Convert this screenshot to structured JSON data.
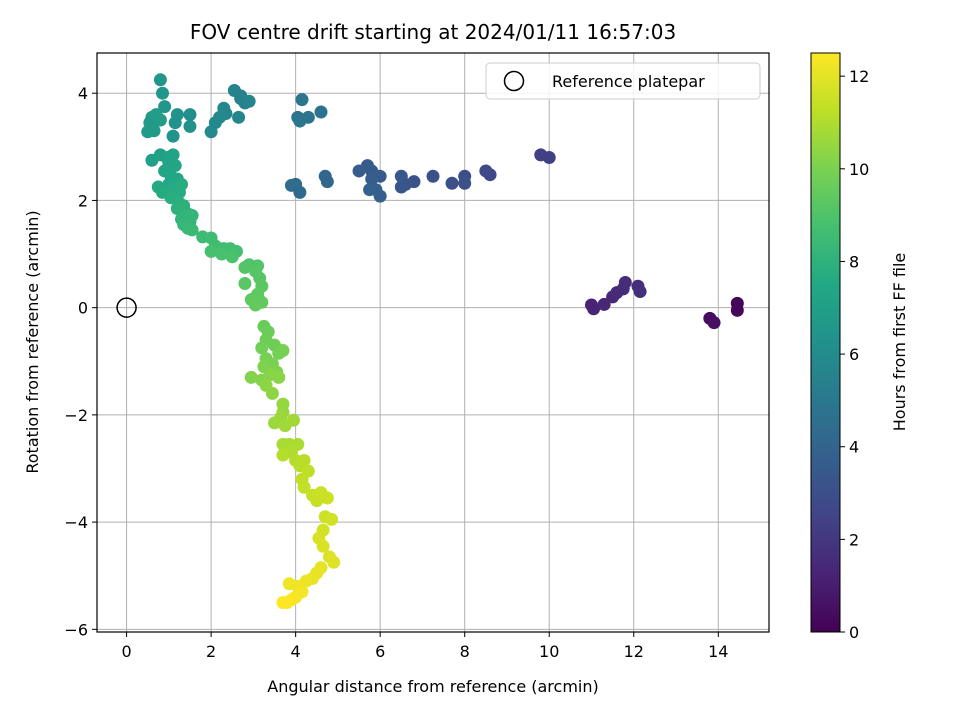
{
  "chart_data": {
    "type": "scatter",
    "title": "FOV centre drift starting at 2024/01/11 16:57:03",
    "xlabel": "Angular distance from reference (arcmin)",
    "ylabel": "Rotation from reference (arcmin)",
    "xlim": [
      -0.7,
      15.2
    ],
    "ylim": [
      -6.05,
      4.75
    ],
    "xticks": [
      0,
      2,
      4,
      6,
      8,
      10,
      12,
      14
    ],
    "yticks": [
      -6,
      -4,
      -2,
      0,
      2,
      4
    ],
    "grid": true,
    "colormap": "viridis",
    "colorbar": {
      "label": "Hours from first FF file",
      "range": [
        0,
        12.5
      ],
      "ticks": [
        0,
        2,
        4,
        6,
        8,
        10,
        12
      ]
    },
    "legend": {
      "position": "top-right",
      "entries": [
        {
          "label": "Reference platepar",
          "marker": "open-circle"
        }
      ]
    },
    "reference_point": {
      "x": 0,
      "y": 0
    },
    "series": [
      {
        "columns": [
          "x",
          "y",
          "hours"
        ],
        "points": [
          [
            14.45,
            0.08,
            0.1
          ],
          [
            14.45,
            -0.05,
            0.2
          ],
          [
            13.8,
            -0.2,
            0.4
          ],
          [
            13.9,
            -0.28,
            0.5
          ],
          [
            11.0,
            0.05,
            1.2
          ],
          [
            11.05,
            -0.02,
            1.25
          ],
          [
            11.3,
            0.06,
            1.35
          ],
          [
            11.5,
            0.2,
            1.45
          ],
          [
            11.6,
            0.28,
            1.5
          ],
          [
            11.75,
            0.35,
            1.55
          ],
          [
            11.8,
            0.47,
            1.6
          ],
          [
            12.1,
            0.4,
            1.65
          ],
          [
            12.15,
            0.3,
            1.7
          ],
          [
            9.8,
            2.85,
            2.3
          ],
          [
            10.0,
            2.8,
            2.35
          ],
          [
            8.6,
            2.48,
            2.7
          ],
          [
            8.5,
            2.55,
            2.75
          ],
          [
            8.0,
            2.45,
            2.9
          ],
          [
            7.7,
            2.32,
            3.0
          ],
          [
            8.0,
            2.32,
            3.05
          ],
          [
            7.25,
            2.45,
            3.1
          ],
          [
            6.8,
            2.35,
            3.2
          ],
          [
            6.6,
            2.3,
            3.3
          ],
          [
            6.5,
            2.25,
            3.35
          ],
          [
            6.5,
            2.45,
            3.4
          ],
          [
            6.0,
            2.45,
            3.5
          ],
          [
            5.7,
            2.65,
            3.55
          ],
          [
            5.8,
            2.55,
            3.6
          ],
          [
            5.5,
            2.55,
            3.65
          ],
          [
            5.8,
            2.4,
            3.7
          ],
          [
            5.9,
            2.2,
            3.75
          ],
          [
            6.0,
            2.08,
            3.8
          ],
          [
            5.75,
            2.2,
            3.85
          ],
          [
            4.7,
            2.45,
            4.1
          ],
          [
            4.75,
            2.35,
            4.15
          ],
          [
            4.1,
            2.15,
            4.3
          ],
          [
            4.0,
            2.3,
            4.35
          ],
          [
            3.9,
            2.28,
            4.4
          ],
          [
            4.6,
            3.65,
            4.7
          ],
          [
            4.3,
            3.55,
            4.75
          ],
          [
            4.05,
            3.55,
            4.8
          ],
          [
            4.1,
            3.48,
            4.85
          ],
          [
            4.15,
            3.88,
            4.9
          ],
          [
            2.7,
            3.9,
            5.4
          ],
          [
            2.8,
            3.82,
            5.45
          ],
          [
            2.55,
            4.05,
            5.5
          ],
          [
            2.7,
            3.95,
            5.55
          ],
          [
            2.9,
            3.85,
            5.6
          ],
          [
            2.65,
            3.55,
            5.65
          ],
          [
            2.3,
            3.72,
            5.7
          ],
          [
            2.35,
            3.62,
            5.75
          ],
          [
            2.2,
            3.55,
            5.8
          ],
          [
            2.1,
            3.45,
            5.85
          ],
          [
            2.0,
            3.28,
            5.9
          ],
          [
            1.5,
            3.6,
            6.2
          ],
          [
            1.5,
            3.38,
            6.25
          ],
          [
            1.2,
            3.6,
            6.3
          ],
          [
            1.15,
            3.45,
            6.35
          ],
          [
            1.1,
            3.2,
            6.4
          ],
          [
            0.85,
            4.0,
            6.5
          ],
          [
            0.8,
            4.25,
            6.55
          ],
          [
            0.9,
            3.75,
            6.6
          ],
          [
            0.6,
            3.55,
            6.65
          ],
          [
            0.55,
            3.45,
            6.7
          ],
          [
            0.65,
            3.3,
            6.75
          ],
          [
            0.5,
            3.28,
            6.8
          ],
          [
            0.8,
            3.5,
            6.85
          ],
          [
            0.7,
            3.6,
            6.9
          ],
          [
            0.6,
            2.75,
            7.0
          ],
          [
            0.8,
            2.85,
            7.05
          ],
          [
            0.95,
            2.8,
            7.1
          ],
          [
            1.1,
            2.85,
            7.15
          ],
          [
            1.0,
            2.7,
            7.2
          ],
          [
            1.15,
            2.65,
            7.3
          ],
          [
            0.9,
            2.55,
            7.35
          ],
          [
            1.05,
            2.45,
            7.4
          ],
          [
            1.2,
            2.4,
            7.45
          ],
          [
            1.0,
            2.3,
            7.5
          ],
          [
            0.75,
            2.25,
            7.55
          ],
          [
            0.85,
            2.15,
            7.6
          ],
          [
            1.1,
            2.2,
            7.65
          ],
          [
            1.25,
            2.15,
            7.7
          ],
          [
            1.3,
            2.3,
            7.75
          ],
          [
            1.05,
            2.05,
            7.8
          ],
          [
            1.25,
            1.95,
            7.85
          ],
          [
            1.35,
            1.9,
            7.9
          ],
          [
            1.2,
            1.85,
            7.95
          ],
          [
            1.35,
            1.8,
            8.0
          ],
          [
            1.45,
            1.75,
            8.05
          ],
          [
            1.3,
            1.65,
            8.1
          ],
          [
            1.5,
            1.6,
            8.15
          ],
          [
            1.55,
            1.72,
            8.2
          ],
          [
            1.35,
            1.55,
            8.25
          ],
          [
            1.45,
            1.48,
            8.3
          ],
          [
            1.55,
            1.45,
            8.35
          ],
          [
            1.8,
            1.32,
            8.5
          ],
          [
            2.0,
            1.3,
            8.55
          ],
          [
            2.1,
            1.15,
            8.6
          ],
          [
            2.3,
            1.1,
            8.65
          ],
          [
            2.45,
            1.1,
            8.7
          ],
          [
            2.6,
            1.05,
            8.75
          ],
          [
            2.0,
            1.05,
            8.8
          ],
          [
            2.25,
            1.0,
            8.85
          ],
          [
            2.5,
            0.95,
            8.9
          ],
          [
            2.9,
            0.8,
            9.0
          ],
          [
            3.1,
            0.78,
            9.05
          ],
          [
            2.8,
            0.75,
            9.1
          ],
          [
            3.05,
            0.68,
            9.15
          ],
          [
            3.15,
            0.55,
            9.2
          ],
          [
            2.8,
            0.45,
            9.25
          ],
          [
            3.2,
            0.4,
            9.3
          ],
          [
            3.1,
            0.25,
            9.35
          ],
          [
            2.95,
            0.15,
            9.4
          ],
          [
            3.2,
            0.1,
            9.45
          ],
          [
            3.05,
            0.05,
            9.5
          ],
          [
            3.25,
            -0.35,
            9.6
          ],
          [
            3.35,
            -0.45,
            9.65
          ],
          [
            3.3,
            -0.6,
            9.7
          ],
          [
            3.5,
            -0.7,
            9.75
          ],
          [
            3.2,
            -0.75,
            9.8
          ],
          [
            3.6,
            -0.85,
            9.85
          ],
          [
            3.3,
            -0.95,
            9.9
          ],
          [
            3.7,
            -0.8,
            9.95
          ],
          [
            3.45,
            -1.05,
            10.0
          ],
          [
            3.25,
            -1.1,
            10.05
          ],
          [
            3.55,
            -1.2,
            10.1
          ],
          [
            2.95,
            -1.3,
            10.15
          ],
          [
            3.2,
            -1.35,
            10.2
          ],
          [
            3.4,
            -1.25,
            10.25
          ],
          [
            3.6,
            -1.3,
            10.3
          ],
          [
            3.3,
            -1.45,
            10.35
          ],
          [
            3.45,
            -1.6,
            10.4
          ],
          [
            3.7,
            -1.8,
            10.5
          ],
          [
            3.7,
            -1.95,
            10.55
          ],
          [
            3.65,
            -2.05,
            10.6
          ],
          [
            3.5,
            -2.15,
            10.65
          ],
          [
            3.75,
            -2.2,
            10.7
          ],
          [
            3.95,
            -2.1,
            10.75
          ],
          [
            3.7,
            -2.55,
            10.85
          ],
          [
            3.85,
            -2.55,
            10.9
          ],
          [
            4.05,
            -2.55,
            10.95
          ],
          [
            3.9,
            -2.7,
            11.0
          ],
          [
            4.0,
            -2.85,
            11.05
          ],
          [
            3.7,
            -2.75,
            11.1
          ],
          [
            4.1,
            -2.95,
            11.15
          ],
          [
            4.2,
            -2.85,
            11.2
          ],
          [
            4.3,
            -3.05,
            11.25
          ],
          [
            4.15,
            -3.2,
            11.3
          ],
          [
            4.2,
            -3.35,
            11.35
          ],
          [
            4.4,
            -3.5,
            11.4
          ],
          [
            4.5,
            -3.6,
            11.45
          ],
          [
            4.6,
            -3.45,
            11.5
          ],
          [
            4.75,
            -3.55,
            11.55
          ],
          [
            4.7,
            -3.9,
            11.6
          ],
          [
            4.85,
            -3.95,
            11.65
          ],
          [
            4.65,
            -4.15,
            11.7
          ],
          [
            4.55,
            -4.3,
            11.75
          ],
          [
            4.65,
            -4.45,
            11.8
          ],
          [
            4.8,
            -4.65,
            11.85
          ],
          [
            4.9,
            -4.75,
            11.9
          ],
          [
            4.6,
            -4.85,
            12.0
          ],
          [
            4.5,
            -4.95,
            12.05
          ],
          [
            4.4,
            -5.05,
            12.1
          ],
          [
            4.25,
            -5.1,
            12.15
          ],
          [
            3.85,
            -5.15,
            12.2
          ],
          [
            4.05,
            -5.2,
            12.25
          ],
          [
            4.15,
            -5.3,
            12.3
          ],
          [
            4.0,
            -5.4,
            12.35
          ],
          [
            3.9,
            -5.45,
            12.4
          ],
          [
            3.8,
            -5.5,
            12.45
          ],
          [
            3.7,
            -5.5,
            12.5
          ]
        ]
      }
    ]
  }
}
